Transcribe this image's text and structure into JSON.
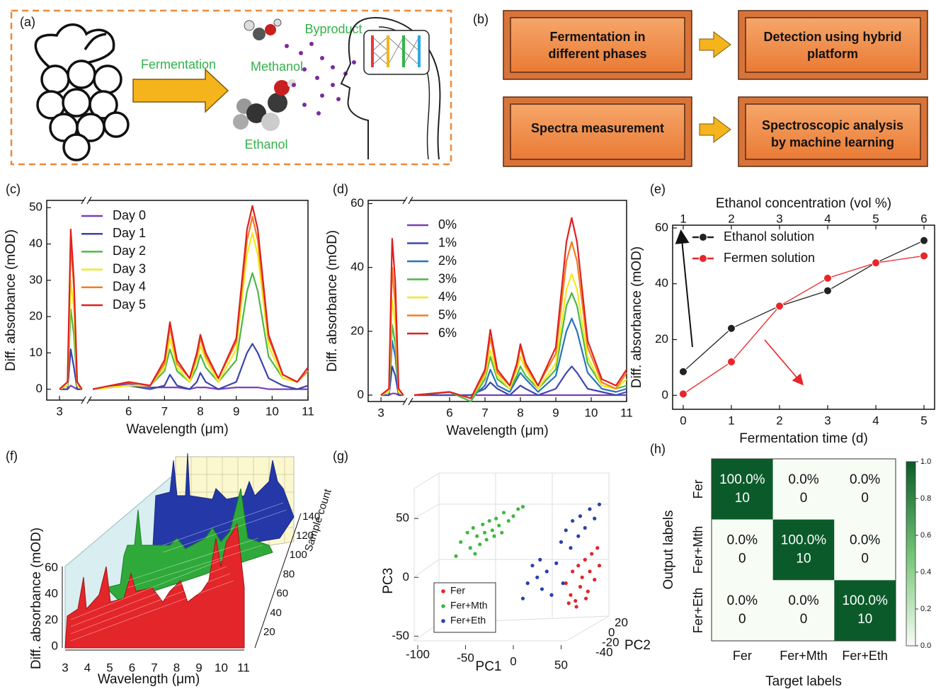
{
  "panel_a": {
    "label": "(a)",
    "arrow_label": "Fermentation",
    "byproduct": "Byproduct",
    "methanol": "Methanol",
    "ethanol": "Ethanol"
  },
  "panel_b": {
    "label": "(b)",
    "boxes": [
      [
        "Fermentation in",
        "different phases"
      ],
      [
        "Detection using hybrid",
        "platform"
      ],
      [
        "Spectra measurement"
      ],
      [
        "Spectroscopic analysis",
        "by machine learning"
      ]
    ]
  },
  "panel_f": {
    "label": "(f)",
    "ylabel": "Diff. absorbance (mOD)",
    "xlabel": "Wavelength (μm)",
    "zlabel": "Sample count",
    "yticks": [
      0,
      20,
      40,
      60
    ],
    "xticks": [
      3,
      4,
      5,
      6,
      7,
      8,
      9,
      10,
      11
    ],
    "zticks": [
      20,
      40,
      60,
      80,
      100,
      120,
      140
    ]
  },
  "chart_data": [
    {
      "type": "line",
      "label": "(c)",
      "xlabel": "Wavelength (μm)",
      "ylabel": "Diff. absorbance (mOD)",
      "xlim": [
        2.6,
        11
      ],
      "xbreak": [
        3.75,
        4.9
      ],
      "ylim": [
        -3,
        52
      ],
      "xticks": [
        3,
        6,
        7,
        8,
        9,
        10,
        11
      ],
      "yticks": [
        0,
        10,
        20,
        30,
        40,
        50
      ],
      "legend": "upper left",
      "x": [
        3,
        3.25,
        3.35,
        3.45,
        3.55,
        3.7,
        5.0,
        6.0,
        6.6,
        7.0,
        7.15,
        7.35,
        7.7,
        7.9,
        8.0,
        8.15,
        8.5,
        9.0,
        9.3,
        9.45,
        9.6,
        9.9,
        10.3,
        10.7,
        11
      ],
      "series": [
        {
          "name": "Day 0",
          "color": "#7d3fbc",
          "values": [
            0,
            0,
            1,
            0.5,
            0,
            0,
            0,
            1.5,
            0.5,
            0.5,
            0.5,
            0.5,
            0,
            0.5,
            0.5,
            0.5,
            0,
            0.5,
            0.5,
            0.5,
            0.5,
            0,
            0,
            0,
            0
          ]
        },
        {
          "name": "Day 1",
          "color": "#3a44a8",
          "values": [
            0,
            0,
            11,
            6,
            0,
            0,
            0,
            1,
            0,
            1,
            4,
            1,
            0,
            2,
            4.5,
            2,
            0,
            2,
            10,
            12.5,
            10,
            3,
            1,
            0,
            1
          ]
        },
        {
          "name": "Day 2",
          "color": "#4cb848",
          "values": [
            0,
            1,
            22,
            15,
            1,
            0,
            0,
            1,
            1,
            5,
            11,
            5,
            2,
            6,
            9.5,
            6,
            2,
            8,
            27,
            32,
            27,
            9,
            3,
            2,
            5
          ]
        },
        {
          "name": "Day 3",
          "color": "#f2ea1c",
          "values": [
            0,
            1,
            30,
            22,
            1,
            0,
            0,
            1,
            1,
            6,
            14,
            6,
            2,
            8,
            12,
            8,
            2,
            11,
            37,
            43,
            37,
            12,
            3,
            2,
            5
          ]
        },
        {
          "name": "Day 4",
          "color": "#f07f20",
          "values": [
            0,
            2,
            40,
            28,
            2,
            0,
            0,
            2,
            1,
            7,
            17,
            7,
            3,
            9,
            14,
            9,
            3,
            13,
            41,
            47.5,
            41,
            14,
            4,
            2,
            5
          ]
        },
        {
          "name": "Day 5",
          "color": "#e02020",
          "values": [
            0,
            2,
            44,
            30,
            2,
            0,
            0,
            2,
            1,
            8,
            18.5,
            8,
            3,
            10,
            15,
            10,
            3,
            14,
            44,
            50.5,
            44,
            15,
            4,
            2,
            6
          ]
        }
      ]
    },
    {
      "type": "line",
      "label": "(d)",
      "xlabel": "Wavelength (μm)",
      "ylabel": "Diff. absorbance (mOD)",
      "xlim": [
        2.6,
        11
      ],
      "xbreak": [
        3.75,
        4.9
      ],
      "ylim": [
        -2,
        61
      ],
      "xticks": [
        3,
        6,
        7,
        8,
        9,
        10,
        11
      ],
      "yticks": [
        0,
        20,
        40,
        60
      ],
      "legend": "upper left",
      "x": [
        3,
        3.25,
        3.35,
        3.45,
        3.55,
        3.7,
        5.0,
        6.0,
        6.6,
        7.0,
        7.15,
        7.35,
        7.7,
        7.9,
        8.0,
        8.15,
        8.5,
        9.0,
        9.3,
        9.45,
        9.6,
        9.9,
        10.3,
        10.7,
        11
      ],
      "series": [
        {
          "name": "0%",
          "color": "#7a3fb5",
          "values": [
            0,
            0,
            0.5,
            0.5,
            0,
            0,
            0,
            0,
            0,
            0,
            0,
            0,
            0,
            0,
            0,
            0,
            0,
            0,
            0,
            0,
            0,
            0,
            0,
            0,
            0
          ]
        },
        {
          "name": "1%",
          "color": "#3f48b0",
          "values": [
            0,
            0,
            9,
            6,
            0,
            0,
            0,
            0,
            0,
            2,
            4,
            2,
            0,
            2,
            3,
            2,
            0,
            2,
            7,
            9,
            7,
            2,
            1,
            0,
            1
          ]
        },
        {
          "name": "2%",
          "color": "#2b73b8",
          "values": [
            0,
            1,
            17,
            12,
            1,
            0,
            0,
            1,
            -1,
            3,
            8,
            3,
            1,
            5,
            7,
            5,
            1,
            6,
            20,
            24,
            20,
            7,
            2,
            1,
            2
          ]
        },
        {
          "name": "3%",
          "color": "#4cb848",
          "values": [
            0,
            1,
            22,
            16,
            1,
            0,
            0,
            1,
            -2,
            5,
            12,
            5,
            2,
            6,
            9,
            6,
            2,
            8,
            28,
            32,
            28,
            10,
            3,
            2,
            3
          ]
        },
        {
          "name": "4%",
          "color": "#f2ea1e",
          "values": [
            0,
            1,
            30,
            22,
            1,
            0,
            0,
            1,
            -1,
            6,
            14,
            6,
            2,
            8,
            12,
            8,
            2,
            10,
            33,
            38,
            33,
            12,
            3,
            2,
            5
          ]
        },
        {
          "name": "5%",
          "color": "#f07f20",
          "values": [
            0,
            2,
            40,
            28,
            2,
            0,
            0,
            1,
            -1,
            7,
            18,
            7,
            3,
            9,
            15,
            9,
            3,
            13,
            42,
            48,
            42,
            15,
            4,
            2,
            7
          ]
        },
        {
          "name": "6%",
          "color": "#e02020",
          "values": [
            0,
            2,
            49,
            35,
            2,
            0,
            0,
            1,
            -1,
            8,
            20.5,
            8,
            3,
            10,
            16,
            10,
            3,
            15,
            48,
            55.5,
            48,
            17,
            5,
            3,
            8
          ]
        }
      ]
    },
    {
      "type": "line",
      "label": "(e)",
      "xlabel": "Fermentation time (d)",
      "ylabel": "Diff. absorbance (mOD)",
      "x2label": "Ethanol concentration (vol %)",
      "xlim": [
        -0.22,
        5.22
      ],
      "x2lim": [
        0.78,
        6.22
      ],
      "ylim": [
        -5,
        61
      ],
      "xticks": [
        0,
        1,
        2,
        3,
        4,
        5
      ],
      "x2ticks": [
        1,
        2,
        3,
        4,
        5,
        6
      ],
      "yticks": [
        0,
        20,
        40,
        60
      ],
      "legend": "upper left",
      "marker": "o",
      "x": [
        0,
        1,
        2,
        3,
        4,
        5
      ],
      "series": [
        {
          "name": "Ethanol solution",
          "color": "#222222",
          "values": [
            8.5,
            24,
            32,
            37.5,
            47.5,
            55.5
          ]
        },
        {
          "name": "Fermen solution",
          "color": "#e8262a",
          "values": [
            0.5,
            12,
            32,
            42,
            47.5,
            50
          ]
        }
      ]
    },
    {
      "type": "scatter",
      "label": "(g)",
      "xlabel": "PC1",
      "ylabel": "PC3",
      "zlabel": "PC2",
      "xlim": [
        -100,
        100
      ],
      "ylim": [
        -60,
        70
      ],
      "xticks": [
        -100,
        -50,
        0,
        50
      ],
      "yticks": [
        -50,
        0,
        50
      ],
      "zticks": [
        20,
        0,
        -20,
        -40
      ],
      "legend": "lower left",
      "series": [
        {
          "name": "Fer",
          "color": "#e0262a",
          "x": [
            55,
            60,
            62,
            65,
            68,
            70,
            72,
            75,
            78,
            80,
            82,
            85,
            88,
            90,
            58,
            66,
            76
          ],
          "values": [
            -5,
            -15,
            5,
            -20,
            10,
            -8,
            0,
            15,
            -12,
            5,
            20,
            -2,
            25,
            10,
            -22,
            -25,
            -18
          ]
        },
        {
          "name": "Fer+Mth",
          "color": "#3fb83f",
          "x": [
            -55,
            -48,
            -45,
            -42,
            -38,
            -35,
            -32,
            -30,
            -28,
            -25,
            -22,
            -20,
            -18,
            -15,
            -12,
            -10,
            -5,
            0,
            5,
            10,
            -40,
            -60
          ],
          "values": [
            30,
            38,
            25,
            42,
            35,
            28,
            45,
            38,
            32,
            48,
            40,
            35,
            50,
            44,
            38,
            55,
            48,
            52,
            58,
            60,
            20,
            18
          ]
        },
        {
          "name": "Fer+Eth",
          "color": "#2a3fae",
          "x": [
            50,
            55,
            60,
            62,
            68,
            70,
            75,
            80,
            85,
            90,
            20,
            25,
            15,
            30,
            35,
            40,
            10,
            45,
            28,
            52
          ],
          "values": [
            30,
            40,
            25,
            48,
            35,
            52,
            42,
            58,
            50,
            62,
            10,
            0,
            -5,
            -10,
            5,
            -15,
            -18,
            12,
            15,
            -5
          ]
        }
      ]
    },
    {
      "type": "heatmap",
      "label": "(h)",
      "xlabel": "Target labels",
      "ylabel": "Output labels",
      "x_categories": [
        "Fer",
        "Fer+Mth",
        "Fer+Eth"
      ],
      "y_categories": [
        "Fer",
        "Fer+Mth",
        "Fer+Eth"
      ],
      "values": [
        [
          1,
          0,
          0
        ],
        [
          0,
          1,
          0
        ],
        [
          0,
          0,
          1
        ]
      ],
      "value_labels": [
        [
          "100.0%",
          "0.0%",
          "0.0%"
        ],
        [
          "0.0%",
          "100.0%",
          "0.0%"
        ],
        [
          "0.0%",
          "0.0%",
          "100.0%"
        ]
      ],
      "counts": [
        [
          10,
          0,
          0
        ],
        [
          0,
          10,
          0
        ],
        [
          0,
          0,
          10
        ]
      ],
      "colormap": [
        "#f7fcf5",
        "#74c476",
        "#0b5b2a"
      ],
      "colorbar_lim": [
        0,
        1
      ],
      "colorbar_ticks": [
        {
          "value": 0,
          "label": "0.0"
        },
        {
          "value": 0.2,
          "label": "0.2"
        },
        {
          "value": 0.4,
          "label": "0.4"
        },
        {
          "value": 0.6,
          "label": "0.6"
        },
        {
          "value": 0.8,
          "label": "0.8"
        },
        {
          "value": 1,
          "label": "1.0"
        }
      ]
    }
  ]
}
